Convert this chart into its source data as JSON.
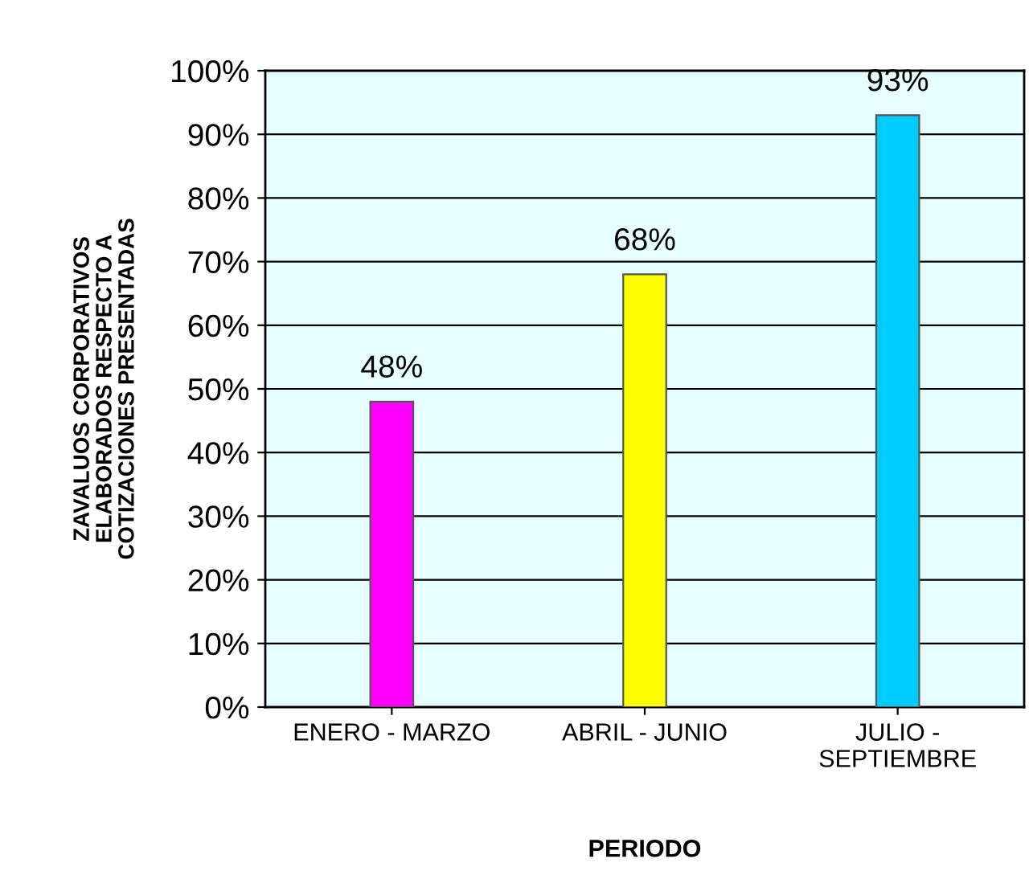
{
  "chart_data": {
    "type": "bar",
    "xlabel": "PERIODO",
    "ylabel": "ZAVALUOS CORPORATIVOS\nELABORADOS RESPECTO A\nCOTIZACIONES PRESENTADAS",
    "categories": [
      "ENERO - MARZO",
      "ABRIL - JUNIO",
      "JULIO -\nSEPTIEMBRE"
    ],
    "values": [
      48,
      68,
      93
    ],
    "colors": [
      "#ff00ff",
      "#ffff00",
      "#00ccff"
    ],
    "value_labels": [
      "48%",
      "68%",
      "93%"
    ],
    "ylim": [
      0,
      100
    ],
    "yticks": [
      {
        "value": 0,
        "label": "0%"
      },
      {
        "value": 10,
        "label": "10%"
      },
      {
        "value": 20,
        "label": "20%"
      },
      {
        "value": 30,
        "label": "30%"
      },
      {
        "value": 40,
        "label": "40%"
      },
      {
        "value": 50,
        "label": "50%"
      },
      {
        "value": 60,
        "label": "60%"
      },
      {
        "value": 70,
        "label": "70%"
      },
      {
        "value": 80,
        "label": "80%"
      },
      {
        "value": 90,
        "label": "90%"
      },
      {
        "value": 100,
        "label": "100%"
      }
    ],
    "grid": "y",
    "legend": false
  }
}
